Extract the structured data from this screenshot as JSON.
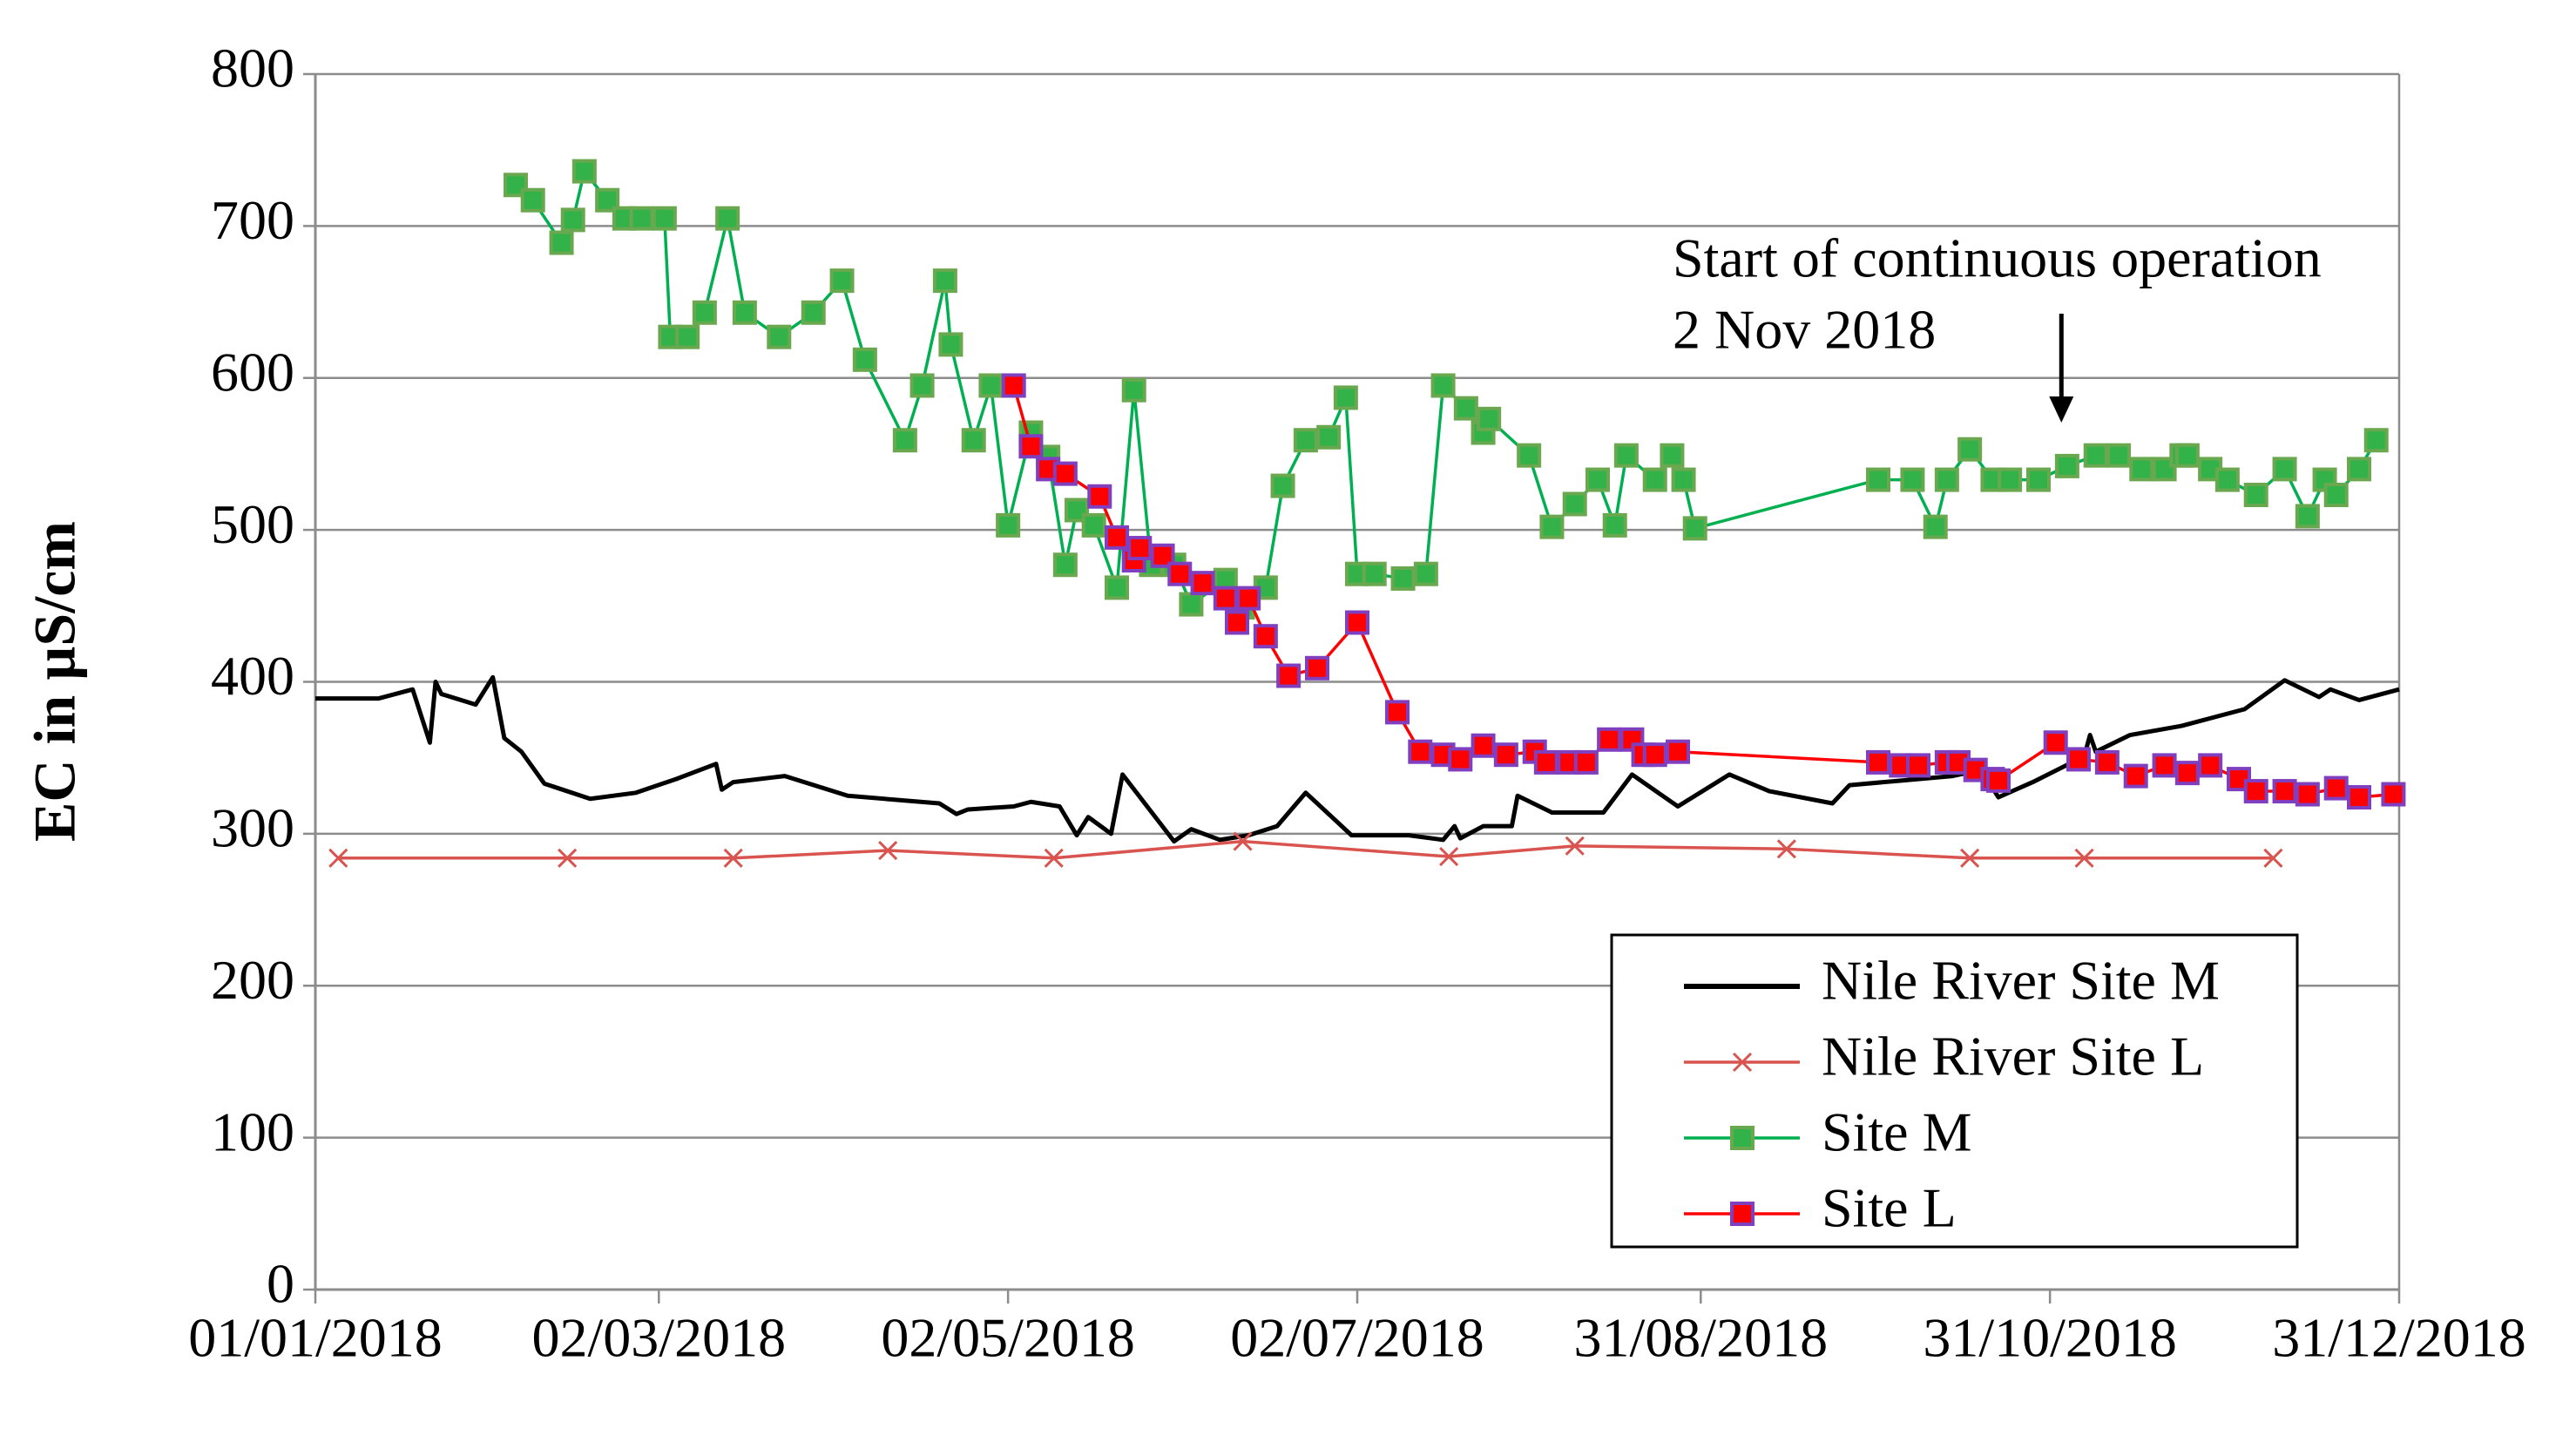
{
  "chart_data": {
    "type": "line",
    "y_label": "EC in µS/cm",
    "xlim": [
      "2018-01-01",
      "2018-12-31"
    ],
    "xticks": [
      {
        "value": "2018-01-01",
        "label": "01/01/2018"
      },
      {
        "value": "2018-03-02",
        "label": "02/03/2018"
      },
      {
        "value": "2018-05-02",
        "label": "02/05/2018"
      },
      {
        "value": "2018-07-02",
        "label": "02/07/2018"
      },
      {
        "value": "2018-08-31",
        "label": "31/08/2018"
      },
      {
        "value": "2018-10-31",
        "label": "31/10/2018"
      },
      {
        "value": "2018-12-31",
        "label": "31/12/2018"
      }
    ],
    "ylim": [
      0,
      800
    ],
    "yticks": [
      0,
      100,
      200,
      300,
      400,
      500,
      600,
      700,
      800
    ],
    "grid": true,
    "legend": "lower right",
    "annotation": {
      "text": [
        "Start of continuous operation",
        "2 Nov 2018"
      ],
      "x": "2018-11-02"
    },
    "series": [
      {
        "name": "Nile River Site M",
        "color": "#000000",
        "marker": "none",
        "x": [
          "2018-01-01",
          "2018-01-12",
          "2018-01-18",
          "2018-01-21",
          "2018-01-22",
          "2018-01-23",
          "2018-01-29",
          "2018-02-01",
          "2018-02-03",
          "2018-02-06",
          "2018-02-10",
          "2018-02-18",
          "2018-02-26",
          "2018-03-05",
          "2018-03-12",
          "2018-03-13",
          "2018-03-15",
          "2018-03-24",
          "2018-04-04",
          "2018-04-20",
          "2018-04-23",
          "2018-04-25",
          "2018-05-03",
          "2018-05-06",
          "2018-05-11",
          "2018-05-14",
          "2018-05-16",
          "2018-05-20",
          "2018-05-22",
          "2018-05-31",
          "2018-06-03",
          "2018-06-08",
          "2018-06-13",
          "2018-06-18",
          "2018-06-23",
          "2018-07-01",
          "2018-07-11",
          "2018-07-17",
          "2018-07-19",
          "2018-07-20",
          "2018-07-24",
          "2018-07-29",
          "2018-07-30",
          "2018-08-05",
          "2018-08-14",
          "2018-08-19",
          "2018-08-27",
          "2018-09-05",
          "2018-09-12",
          "2018-09-23",
          "2018-09-26",
          "2018-10-05",
          "2018-10-14",
          "2018-10-19",
          "2018-10-22",
          "2018-10-28",
          "2018-11-06",
          "2018-11-07",
          "2018-11-08",
          "2018-11-14",
          "2018-11-23",
          "2018-12-04",
          "2018-12-11",
          "2018-12-17",
          "2018-12-19",
          "2018-12-24",
          "2018-12-31"
        ],
        "values": [
          389,
          389,
          395,
          360,
          400,
          392,
          385,
          403,
          363,
          354,
          333,
          323,
          327,
          336,
          346,
          329,
          334,
          338,
          325,
          320,
          313,
          316,
          318,
          321,
          318,
          299,
          311,
          300,
          339,
          295,
          303,
          296,
          299,
          305,
          327,
          299,
          299,
          296,
          305,
          297,
          305,
          305,
          325,
          314,
          314,
          339,
          318,
          339,
          328,
          320,
          332,
          335,
          338,
          342,
          324,
          334,
          351,
          365,
          354,
          365,
          371,
          382,
          401,
          390,
          395,
          388,
          395
        ]
      },
      {
        "name": "Nile River Site L",
        "color": "#d9534f",
        "marker": "x",
        "marker_color": "#d9534f",
        "x": [
          "2018-01-05",
          "2018-02-14",
          "2018-03-15",
          "2018-04-11",
          "2018-05-10",
          "2018-06-12",
          "2018-07-18",
          "2018-08-09",
          "2018-09-15",
          "2018-10-17",
          "2018-11-06",
          "2018-12-09"
        ],
        "values": [
          284,
          284,
          284,
          289,
          284,
          295,
          285,
          292,
          290,
          284,
          284,
          284
        ]
      },
      {
        "name": "Site M",
        "color": "#00b050",
        "marker": "square",
        "marker_color": "#33b24a",
        "marker_edge": "#6aa84f",
        "x": [
          "2018-02-05",
          "2018-02-08",
          "2018-02-13",
          "2018-02-15",
          "2018-02-17",
          "2018-02-21",
          "2018-02-24",
          "2018-02-27",
          "2018-03-03",
          "2018-03-04",
          "2018-03-07",
          "2018-03-10",
          "2018-03-14",
          "2018-03-17",
          "2018-03-23",
          "2018-03-29",
          "2018-04-03",
          "2018-04-07",
          "2018-04-14",
          "2018-04-17",
          "2018-04-21",
          "2018-04-22",
          "2018-04-26",
          "2018-04-29",
          "2018-05-02",
          "2018-05-06",
          "2018-05-09",
          "2018-05-12",
          "2018-05-14",
          "2018-05-17",
          "2018-05-21",
          "2018-05-24",
          "2018-05-27",
          "2018-05-31",
          "2018-06-03",
          "2018-06-09",
          "2018-06-12",
          "2018-06-16",
          "2018-06-19",
          "2018-06-23",
          "2018-06-27",
          "2018-06-30",
          "2018-07-02",
          "2018-07-05",
          "2018-07-10",
          "2018-07-14",
          "2018-07-17",
          "2018-07-21",
          "2018-07-24",
          "2018-07-25",
          "2018-08-01",
          "2018-08-05",
          "2018-08-09",
          "2018-08-13",
          "2018-08-16",
          "2018-08-18",
          "2018-08-23",
          "2018-08-26",
          "2018-08-28",
          "2018-08-30",
          "2018-10-01",
          "2018-10-07",
          "2018-10-11",
          "2018-10-13",
          "2018-10-17",
          "2018-10-21",
          "2018-10-24",
          "2018-10-29",
          "2018-11-03",
          "2018-11-08",
          "2018-11-12",
          "2018-11-16",
          "2018-11-20",
          "2018-11-23",
          "2018-11-24",
          "2018-11-28",
          "2018-12-01",
          "2018-12-06",
          "2018-12-11",
          "2018-12-15",
          "2018-12-18",
          "2018-12-20",
          "2018-12-24",
          "2018-12-27"
        ],
        "values": [
          727,
          717,
          689,
          704,
          736,
          717,
          705,
          705,
          705,
          627,
          627,
          643,
          705,
          643,
          627,
          643,
          664,
          612,
          559,
          595,
          664,
          622,
          559,
          595,
          503,
          564,
          548,
          477,
          513,
          503,
          462,
          592,
          477,
          477,
          451,
          467,
          449,
          462,
          529,
          559,
          561,
          587,
          471,
          471,
          468,
          471,
          595,
          580,
          564,
          573,
          549,
          502,
          517,
          533,
          503,
          549,
          533,
          549,
          533,
          501,
          533,
          533,
          502,
          533,
          553,
          533,
          533,
          533,
          542,
          549,
          549,
          540,
          540,
          549,
          549,
          540,
          533,
          523,
          540,
          509,
          533,
          523,
          540,
          559
        ]
      },
      {
        "name": "Site L",
        "color": "#ff0000",
        "marker": "square",
        "marker_color": "#ff0000",
        "marker_edge": "#7f3fbf",
        "x": [
          "2018-05-03",
          "2018-05-06",
          "2018-05-09",
          "2018-05-12",
          "2018-05-18",
          "2018-05-21",
          "2018-05-24",
          "2018-05-25",
          "2018-05-29",
          "2018-06-01",
          "2018-06-05",
          "2018-06-09",
          "2018-06-11",
          "2018-06-13",
          "2018-06-16",
          "2018-06-20",
          "2018-06-25",
          "2018-07-02",
          "2018-07-09",
          "2018-07-13",
          "2018-07-17",
          "2018-07-20",
          "2018-07-24",
          "2018-07-28",
          "2018-08-02",
          "2018-08-04",
          "2018-08-08",
          "2018-08-11",
          "2018-08-15",
          "2018-08-19",
          "2018-08-21",
          "2018-08-23",
          "2018-08-27",
          "2018-10-01",
          "2018-10-05",
          "2018-10-08",
          "2018-10-13",
          "2018-10-15",
          "2018-10-18",
          "2018-10-21",
          "2018-10-22",
          "2018-11-01",
          "2018-11-05",
          "2018-11-10",
          "2018-11-15",
          "2018-11-20",
          "2018-11-24",
          "2018-11-28",
          "2018-12-03",
          "2018-12-06",
          "2018-12-11",
          "2018-12-15",
          "2018-12-20",
          "2018-12-24",
          "2018-12-30"
        ],
        "values": [
          595,
          555,
          540,
          537,
          522,
          495,
          480,
          488,
          483,
          471,
          465,
          455,
          439,
          455,
          430,
          404,
          409,
          439,
          380,
          354,
          352,
          349,
          358,
          352,
          354,
          347,
          347,
          347,
          362,
          362,
          352,
          352,
          354,
          347,
          345,
          345,
          347,
          347,
          342,
          336,
          335,
          360,
          349,
          347,
          338,
          345,
          340,
          345,
          336,
          328,
          328,
          326,
          330,
          324,
          326
        ]
      }
    ]
  }
}
